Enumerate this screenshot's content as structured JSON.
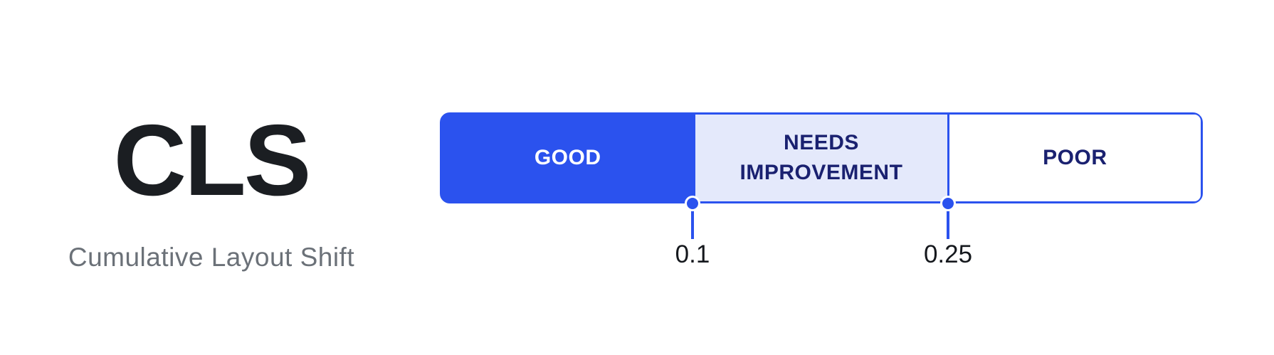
{
  "metric": {
    "acronym": "CLS",
    "name": "Cumulative Layout Shift"
  },
  "scale": {
    "segments": [
      {
        "label": "GOOD",
        "fill": "#2B52EE",
        "text_color": "#FFFFFF"
      },
      {
        "label": "NEEDS IMPROVEMENT",
        "fill": "#E4E9FB",
        "text_color": "#1A2170"
      },
      {
        "label": "POOR",
        "fill": "#FFFFFF",
        "text_color": "#1A2170"
      }
    ],
    "thresholds": [
      {
        "value": "0.1"
      },
      {
        "value": "0.25"
      }
    ],
    "border_color": "#2B52EE"
  },
  "colors": {
    "accent_blue": "#2B52EE",
    "light_blue": "#E4E9FB",
    "navy_text": "#1A2170",
    "title_text": "#1B1E22",
    "subtitle_gray": "#6B7178",
    "tick_label": "#15181D",
    "background": "#FFFFFF"
  }
}
